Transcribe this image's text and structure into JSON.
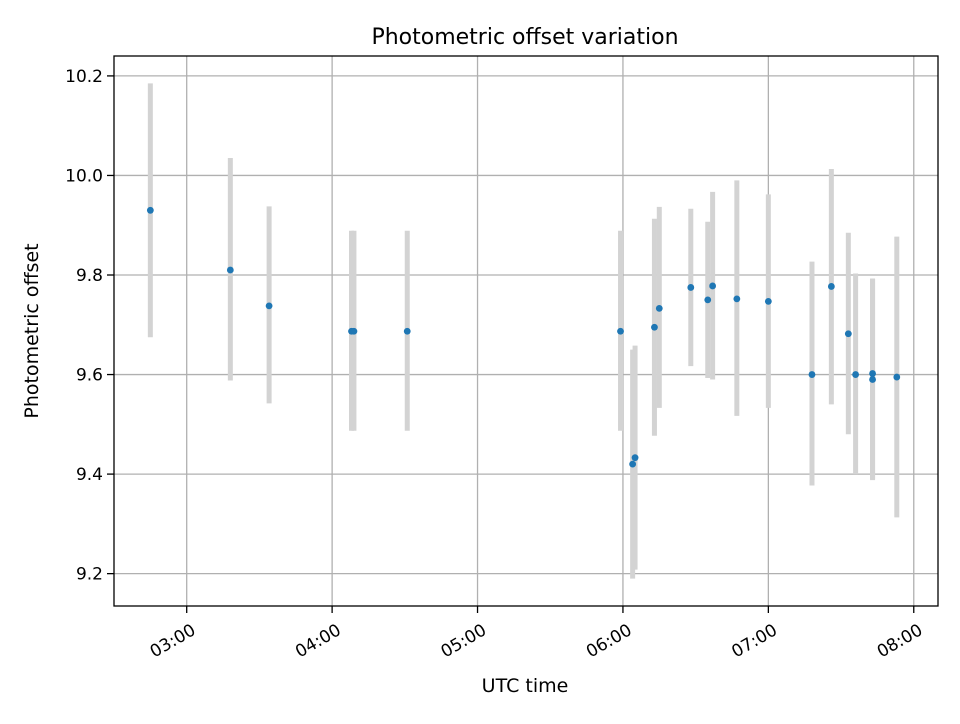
{
  "chart_data": {
    "type": "scatter",
    "title": "Photometric offset variation",
    "xlabel": "UTC time",
    "ylabel": "Photometric offset",
    "x_unit": "UTC time (HH:MM)",
    "xlim": [
      "02:30",
      "08:10"
    ],
    "ylim": [
      9.135,
      10.24
    ],
    "x_ticks": [
      "03:00",
      "04:00",
      "05:00",
      "06:00",
      "07:00",
      "08:00"
    ],
    "y_ticks": [
      "9.2",
      "9.4",
      "9.6",
      "9.8",
      "10.0",
      "10.2"
    ],
    "grid": true,
    "legend": "none",
    "colors": {
      "point": "#1f77b4",
      "errorbar": "#d3d3d3",
      "grid": "#b0b0b0",
      "axes": "#000000"
    },
    "series": [
      {
        "points": [
          {
            "x": "02:45",
            "y": 9.93,
            "yerr_low": 9.675,
            "yerr_high": 10.185
          },
          {
            "x": "03:18",
            "y": 9.81,
            "yerr_low": 9.588,
            "yerr_high": 10.035
          },
          {
            "x": "03:34",
            "y": 9.738,
            "yerr_low": 9.542,
            "yerr_high": 9.938
          },
          {
            "x": "04:08",
            "y": 9.687,
            "yerr_low": 9.487,
            "yerr_high": 9.889
          },
          {
            "x": "04:09",
            "y": 9.687,
            "yerr_low": 9.487,
            "yerr_high": 9.889
          },
          {
            "x": "04:31",
            "y": 9.687,
            "yerr_low": 9.487,
            "yerr_high": 9.889
          },
          {
            "x": "05:59",
            "y": 9.687,
            "yerr_low": 9.487,
            "yerr_high": 9.889
          },
          {
            "x": "06:04",
            "y": 9.42,
            "yerr_low": 9.19,
            "yerr_high": 9.65
          },
          {
            "x": "06:05",
            "y": 9.433,
            "yerr_low": 9.208,
            "yerr_high": 9.658
          },
          {
            "x": "06:13",
            "y": 9.695,
            "yerr_low": 9.477,
            "yerr_high": 9.913
          },
          {
            "x": "06:15",
            "y": 9.733,
            "yerr_low": 9.533,
            "yerr_high": 9.937
          },
          {
            "x": "06:28",
            "y": 9.775,
            "yerr_low": 9.617,
            "yerr_high": 9.933
          },
          {
            "x": "06:35",
            "y": 9.75,
            "yerr_low": 9.593,
            "yerr_high": 9.907
          },
          {
            "x": "06:37",
            "y": 9.778,
            "yerr_low": 9.59,
            "yerr_high": 9.967
          },
          {
            "x": "06:47",
            "y": 9.752,
            "yerr_low": 9.517,
            "yerr_high": 9.99
          },
          {
            "x": "07:00",
            "y": 9.747,
            "yerr_low": 9.533,
            "yerr_high": 9.962
          },
          {
            "x": "07:18",
            "y": 9.6,
            "yerr_low": 9.377,
            "yerr_high": 9.827
          },
          {
            "x": "07:26",
            "y": 9.777,
            "yerr_low": 9.54,
            "yerr_high": 10.013
          },
          {
            "x": "07:33",
            "y": 9.682,
            "yerr_low": 9.48,
            "yerr_high": 9.885
          },
          {
            "x": "07:36",
            "y": 9.6,
            "yerr_low": 9.4,
            "yerr_high": 9.803
          },
          {
            "x": "07:43",
            "y": 9.602,
            "yerr_low": 9.39,
            "yerr_high": 9.793
          },
          {
            "x": "07:43",
            "y": 9.59,
            "yerr_low": 9.388,
            "yerr_high": 9.792
          },
          {
            "x": "07:53",
            "y": 9.595,
            "yerr_low": 9.313,
            "yerr_high": 9.877
          }
        ]
      }
    ]
  }
}
